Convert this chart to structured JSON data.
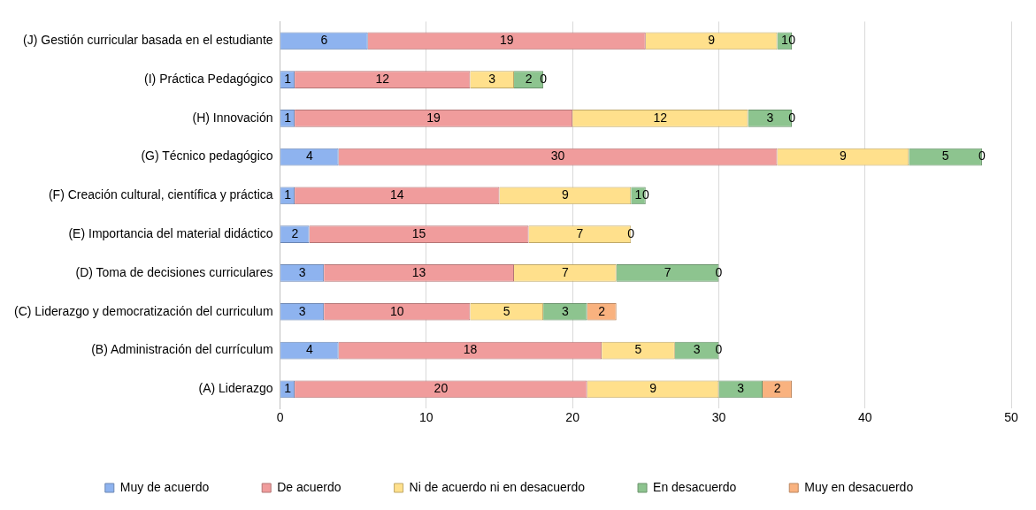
{
  "chart_data": {
    "type": "bar",
    "orientation": "horizontal",
    "stacked": true,
    "data_labels": true,
    "grid": "x",
    "legend": "bottom",
    "categories": [
      "(J) Gestión curricular basada en el estudiante",
      "(I) Práctica Pedagógico",
      "(H) Innovación",
      "(G) Técnico pedagógico",
      "(F) Creación cultural, científica y práctica",
      "(E) Importancia del material didáctico",
      "(D) Toma de decisiones curriculares",
      "(C) Liderazgo y democratización del curriculum",
      "(B) Administración del currículum",
      "(A) Liderazgo"
    ],
    "xlim": [
      0,
      50
    ],
    "xticks": [
      0,
      10,
      20,
      30,
      40,
      50
    ],
    "series": [
      {
        "name": "Muy de acuerdo",
        "color": "#8eb3ef",
        "values": [
          6,
          1,
          1,
          4,
          1,
          2,
          3,
          3,
          4,
          1
        ]
      },
      {
        "name": "De acuerdo",
        "color": "#f09c9c",
        "values": [
          19,
          12,
          19,
          30,
          14,
          15,
          13,
          10,
          18,
          20
        ]
      },
      {
        "name": "Ni de acuerdo ni en desacuerdo",
        "color": "#ffe08c",
        "values": [
          9,
          3,
          12,
          9,
          9,
          7,
          7,
          5,
          5,
          9
        ]
      },
      {
        "name": "En desacuerdo",
        "color": "#8dc48f",
        "values": [
          1,
          2,
          3,
          5,
          1,
          0,
          7,
          3,
          3,
          3
        ]
      },
      {
        "name": "Muy en desacuerdo",
        "color": "#f9b27f",
        "values": [
          0,
          0,
          0,
          0,
          0,
          null,
          0,
          2,
          0,
          2
        ]
      }
    ]
  }
}
